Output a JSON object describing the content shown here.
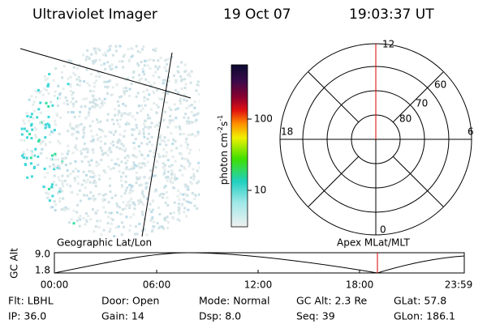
{
  "header": {
    "title": "Ultraviolet Imager",
    "date": "19 Oct 07",
    "time": "19:03:37 UT"
  },
  "colorbar": {
    "label": [
      "photon cm",
      "-2",
      "s",
      "-1"
    ],
    "ticks": [
      "100",
      "10"
    ]
  },
  "polar": {
    "mlt_labels": [
      "12",
      "18",
      "6",
      "0"
    ],
    "lat_labels": [
      "80",
      "70",
      "60"
    ]
  },
  "orbit": {
    "left_label": "Geographic Lat/Lon",
    "right_label": "Apex MLat/MLT",
    "y_label": "GC Alt",
    "y_ticks": [
      "9.0",
      "1.8"
    ],
    "x_ticks": [
      "00:00",
      "06:00",
      "12:00",
      "18:00",
      "23:59"
    ]
  },
  "footer": {
    "rows": [
      [
        "Flt: LBHL",
        "Door: Open",
        "Mode: Normal",
        "GC Alt: 2.3 Re",
        "GLat: 57.8"
      ],
      [
        "IP: 36.0",
        "Gain: 14",
        "Dsp:      8.0",
        "Seq: 39",
        "GLon: 186.1"
      ]
    ]
  }
}
